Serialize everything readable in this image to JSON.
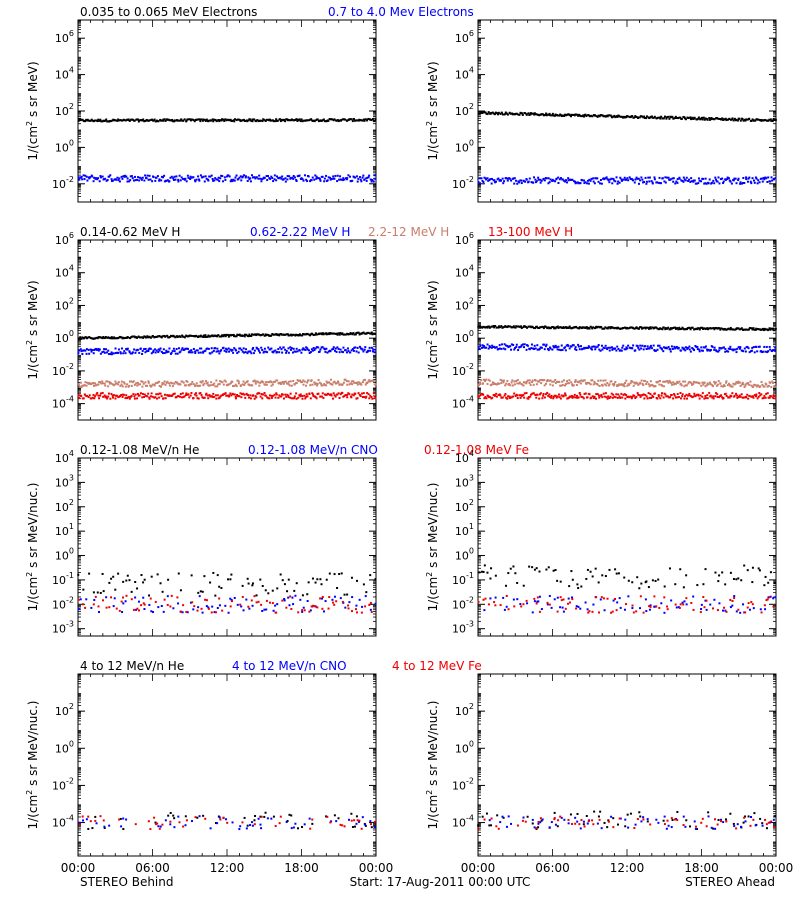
{
  "colors": {
    "black": "#000000",
    "blue": "#0000ff",
    "salmon": "#c87e6a",
    "red": "#ee0000",
    "background": "#ffffff"
  },
  "rows": [
    {
      "labels": [
        {
          "text": "0.035 to 0.065 MeV Electrons",
          "color": "#000000"
        },
        {
          "text": "0.7 to 4.0 Mev Electrons",
          "color": "#0000ff"
        }
      ]
    },
    {
      "labels": [
        {
          "text": "0.14-0.62 MeV H",
          "color": "#000000"
        },
        {
          "text": "0.62-2.22 MeV H",
          "color": "#0000ff"
        },
        {
          "text": "2.2-12 MeV H",
          "color": "#c87e6a"
        },
        {
          "text": "13-100 MeV H",
          "color": "#ee0000"
        }
      ]
    },
    {
      "labels": [
        {
          "text": "0.12-1.08 MeV/n He",
          "color": "#000000"
        },
        {
          "text": "0.12-1.08 MeV/n CNO",
          "color": "#0000ff"
        },
        {
          "text": "0.12-1.08 MeV Fe",
          "color": "#ee0000"
        }
      ]
    },
    {
      "labels": [
        {
          "text": "4 to 12 MeV/n He",
          "color": "#000000"
        },
        {
          "text": "4 to 12 MeV/n CNO",
          "color": "#0000ff"
        },
        {
          "text": "4 to 12 MeV Fe",
          "color": "#ee0000"
        }
      ]
    }
  ],
  "footer": {
    "left": "STEREO Behind",
    "center": "Start: 17-Aug-2011 00:00 UTC",
    "right": "STEREO Ahead"
  },
  "chart_data": [
    {
      "type": "scatter",
      "spacecraft": "STEREO Behind",
      "panel_row": 1,
      "ylabel": "1/(cm² s sr MeV)",
      "yscale": "log",
      "yticks": [
        -2,
        0,
        2,
        4,
        6
      ],
      "xlim_hours": [
        0,
        24
      ],
      "xticks": [
        "00:00",
        "06:00",
        "12:00",
        "18:00",
        "00:00"
      ],
      "series": [
        {
          "name": "0.035 to 0.065 MeV Electrons",
          "color": "#000000",
          "level": 30,
          "level_end": 32
        },
        {
          "name": "0.7 to 4.0 Mev Electrons",
          "color": "#0000ff",
          "level": 0.02,
          "level_end": 0.02
        }
      ]
    },
    {
      "type": "scatter",
      "spacecraft": "STEREO Ahead",
      "panel_row": 1,
      "ylabel": "1/(cm² s sr MeV)",
      "yscale": "log",
      "yticks": [
        -2,
        0,
        2,
        4,
        6
      ],
      "xlim_hours": [
        0,
        24
      ],
      "xticks": [
        "00:00",
        "06:00",
        "12:00",
        "18:00",
        "00:00"
      ],
      "series": [
        {
          "name": "0.035 to 0.065 MeV Electrons",
          "color": "#000000",
          "level": 80,
          "level_end": 30
        },
        {
          "name": "0.7 to 4.0 Mev Electrons",
          "color": "#0000ff",
          "level": 0.015,
          "level_end": 0.015
        }
      ]
    },
    {
      "type": "scatter",
      "spacecraft": "STEREO Behind",
      "panel_row": 2,
      "ylabel": "1/(cm² s sr MeV)",
      "yscale": "log",
      "yticks": [
        -4,
        -2,
        0,
        2,
        4,
        6
      ],
      "xlim_hours": [
        0,
        24
      ],
      "xticks": [
        "00:00",
        "06:00",
        "12:00",
        "18:00",
        "00:00"
      ],
      "series": [
        {
          "name": "0.14-0.62 MeV H",
          "color": "#000000",
          "level": 1.0,
          "level_end": 2.0
        },
        {
          "name": "0.62-2.22 MeV H",
          "color": "#0000ff",
          "level": 0.15,
          "level_end": 0.2
        },
        {
          "name": "2.2-12 MeV H",
          "color": "#c87e6a",
          "level": 0.0015,
          "level_end": 0.002
        },
        {
          "name": "13-100 MeV H",
          "color": "#ee0000",
          "level": 0.0003,
          "level_end": 0.0003
        }
      ]
    },
    {
      "type": "scatter",
      "spacecraft": "STEREO Ahead",
      "panel_row": 2,
      "ylabel": "1/(cm² s sr MeV)",
      "yscale": "log",
      "yticks": [
        -4,
        -2,
        0,
        2,
        4,
        6
      ],
      "xlim_hours": [
        0,
        24
      ],
      "xticks": [
        "00:00",
        "06:00",
        "12:00",
        "18:00",
        "00:00"
      ],
      "series": [
        {
          "name": "0.14-0.62 MeV H",
          "color": "#000000",
          "level": 5.0,
          "level_end": 3.5
        },
        {
          "name": "0.62-2.22 MeV H",
          "color": "#0000ff",
          "level": 0.3,
          "level_end": 0.2
        },
        {
          "name": "2.2-12 MeV H",
          "color": "#c87e6a",
          "level": 0.002,
          "level_end": 0.0015
        },
        {
          "name": "13-100 MeV H",
          "color": "#ee0000",
          "level": 0.0003,
          "level_end": 0.0003
        }
      ]
    },
    {
      "type": "scatter",
      "spacecraft": "STEREO Behind",
      "panel_row": 3,
      "ylabel": "1/(cm² s sr MeV/nuc.)",
      "yscale": "log",
      "yticks": [
        -3,
        -2,
        -1,
        0,
        1,
        2,
        3,
        4
      ],
      "xlim_hours": [
        0,
        24
      ],
      "xticks": [
        "00:00",
        "06:00",
        "12:00",
        "18:00",
        "00:00"
      ],
      "series": [
        {
          "name": "0.12-1.08 MeV/n He",
          "color": "#000000",
          "level": 0.05,
          "level_end": 0.05
        },
        {
          "name": "0.12-1.08 MeV/n CNO",
          "color": "#0000ff",
          "level": 0.01,
          "level_end": 0.01
        },
        {
          "name": "0.12-1.08 MeV Fe",
          "color": "#ee0000",
          "level": 0.01,
          "level_end": 0.01
        }
      ]
    },
    {
      "type": "scatter",
      "spacecraft": "STEREO Ahead",
      "panel_row": 3,
      "ylabel": "1/(cm² s sr MeV/nuc.)",
      "yscale": "log",
      "yticks": [
        -3,
        -2,
        -1,
        0,
        1,
        2,
        3,
        4
      ],
      "xlim_hours": [
        0,
        24
      ],
      "xticks": [
        "00:00",
        "06:00",
        "12:00",
        "18:00",
        "00:00"
      ],
      "series": [
        {
          "name": "0.12-1.08 MeV/n He",
          "color": "#000000",
          "level": 0.1,
          "level_end": 0.1
        },
        {
          "name": "0.12-1.08 MeV/n CNO",
          "color": "#0000ff",
          "level": 0.01,
          "level_end": 0.01
        },
        {
          "name": "0.12-1.08 MeV Fe",
          "color": "#ee0000",
          "level": 0.01,
          "level_end": 0.01
        }
      ]
    },
    {
      "type": "scatter",
      "spacecraft": "STEREO Behind",
      "panel_row": 4,
      "ylabel": "1/(cm² s sr MeV/nuc.)",
      "yscale": "log",
      "yticks": [
        -4,
        -2,
        0,
        2
      ],
      "xlim_hours": [
        0,
        24
      ],
      "xticks": [
        "00:00",
        "06:00",
        "12:00",
        "18:00",
        "00:00"
      ],
      "series": [
        {
          "name": "4 to 12 MeV/n He",
          "color": "#000000",
          "level": 0.0001,
          "level_end": 0.0001
        },
        {
          "name": "4 to 12 MeV/n CNO",
          "color": "#0000ff",
          "level": 0.0001,
          "level_end": 0.0001
        },
        {
          "name": "4 to 12 MeV Fe",
          "color": "#ee0000",
          "level": 0.0001,
          "level_end": 0.0001
        }
      ]
    },
    {
      "type": "scatter",
      "spacecraft": "STEREO Ahead",
      "panel_row": 4,
      "ylabel": "1/(cm² s sr MeV/nuc.)",
      "yscale": "log",
      "yticks": [
        -4,
        -2,
        0,
        2
      ],
      "xlim_hours": [
        0,
        24
      ],
      "xticks": [
        "00:00",
        "06:00",
        "12:00",
        "18:00",
        "00:00"
      ],
      "series": [
        {
          "name": "4 to 12 MeV/n He",
          "color": "#000000",
          "level": 0.0001,
          "level_end": 0.0001
        },
        {
          "name": "4 to 12 MeV/n CNO",
          "color": "#0000ff",
          "level": 0.0001,
          "level_end": 0.0001
        },
        {
          "name": "4 to 12 MeV Fe",
          "color": "#ee0000",
          "level": 0.0001,
          "level_end": 0.0001
        }
      ]
    }
  ]
}
